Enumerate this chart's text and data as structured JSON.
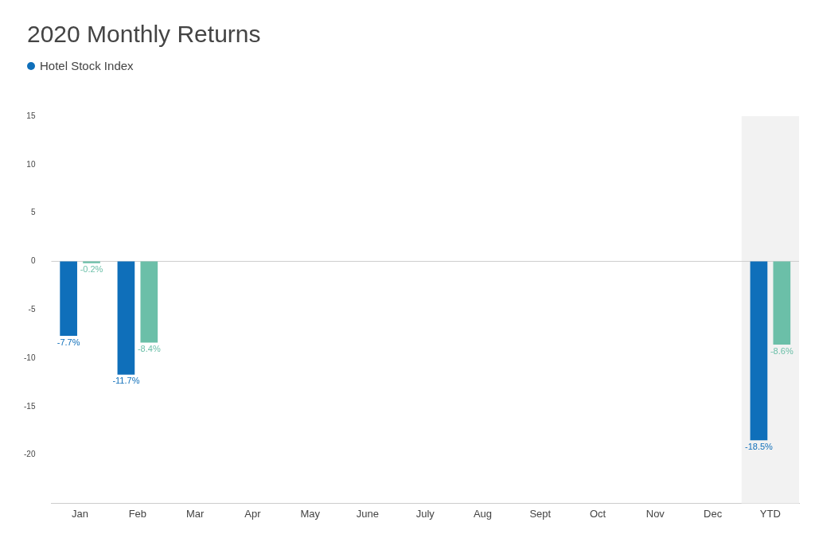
{
  "chart_data": {
    "type": "bar",
    "title": "2020 Monthly Returns",
    "categories": [
      "Jan",
      "Feb",
      "Mar",
      "Apr",
      "May",
      "June",
      "July",
      "Aug",
      "Sept",
      "Oct",
      "Nov",
      "Dec",
      "YTD"
    ],
    "series": [
      {
        "name": "Hotel Stock Index",
        "color": "#0f6fba",
        "values": [
          -7.7,
          -11.7,
          null,
          null,
          null,
          null,
          null,
          null,
          null,
          null,
          null,
          null,
          -18.5
        ],
        "value_labels": [
          "-7.7%",
          "-11.7%",
          null,
          null,
          null,
          null,
          null,
          null,
          null,
          null,
          null,
          null,
          "-18.5%"
        ]
      },
      {
        "color": "#6bbfa8",
        "values": [
          -0.2,
          -8.4,
          null,
          null,
          null,
          null,
          null,
          null,
          null,
          null,
          null,
          null,
          -8.6
        ],
        "value_labels": [
          "-0.2%",
          "-8.4%",
          null,
          null,
          null,
          null,
          null,
          null,
          null,
          null,
          null,
          null,
          "-8.6%"
        ]
      }
    ],
    "ylim": [
      -25,
      15
    ],
    "yticks": [
      -20,
      -15,
      -10,
      -5,
      0,
      5,
      10,
      15
    ],
    "bands": [
      {
        "axis": "x",
        "from": "YTD",
        "to": "YTD",
        "color": "#f2f2f2"
      }
    ],
    "ref_lines": [
      {
        "axis": "y",
        "value": 0,
        "color": "#cccccc"
      }
    ],
    "grid": false,
    "legend": "top left"
  }
}
